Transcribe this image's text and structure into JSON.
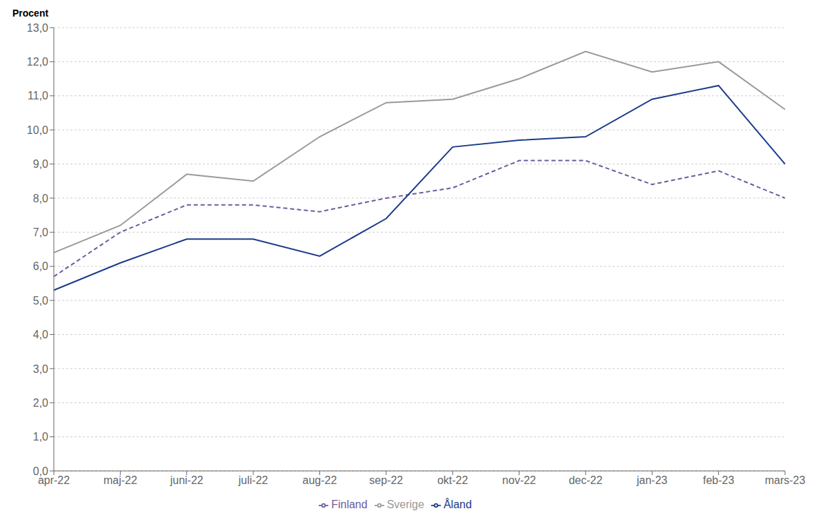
{
  "chart_data": {
    "type": "line",
    "ylabel": "Procent",
    "categories": [
      "apr-22",
      "maj-22",
      "juni-22",
      "juli-22",
      "aug-22",
      "sep-22",
      "okt-22",
      "nov-22",
      "dec-22",
      "jan-23",
      "feb-23",
      "mars-23"
    ],
    "series": [
      {
        "name": "Sverige",
        "color": "#999999",
        "values": [
          6.4,
          7.2,
          8.7,
          8.5,
          9.8,
          10.8,
          10.9,
          11.5,
          12.3,
          11.7,
          12.0,
          10.6
        ]
      },
      {
        "name": "Finland",
        "color": "#6b5b9e",
        "line_style": "dashed",
        "values": [
          5.7,
          7.0,
          7.8,
          7.8,
          7.6,
          8.0,
          8.3,
          9.1,
          9.1,
          8.4,
          8.8,
          8.0
        ]
      },
      {
        "name": "Åland",
        "color": "#1a3a8a",
        "values": [
          5.3,
          6.1,
          6.8,
          6.8,
          6.3,
          7.4,
          9.5,
          9.7,
          9.8,
          10.9,
          11.3,
          9.0
        ]
      }
    ],
    "ylim": [
      0,
      13
    ],
    "yticks": [
      {
        "value": 0,
        "label": "0,0"
      },
      {
        "value": 1,
        "label": "1,0"
      },
      {
        "value": 2,
        "label": "2,0"
      },
      {
        "value": 3,
        "label": "3,0"
      },
      {
        "value": 4,
        "label": "4,0"
      },
      {
        "value": 5,
        "label": "5,0"
      },
      {
        "value": 6,
        "label": "6,0"
      },
      {
        "value": 7,
        "label": "7,0"
      },
      {
        "value": 8,
        "label": "8,0"
      },
      {
        "value": 9,
        "label": "9,0"
      },
      {
        "value": 10,
        "label": "10,0"
      },
      {
        "value": 11,
        "label": "11,0"
      },
      {
        "value": 12,
        "label": "12,0"
      },
      {
        "value": 13,
        "label": "13,0"
      }
    ],
    "grid": true,
    "legend": "bottom"
  }
}
